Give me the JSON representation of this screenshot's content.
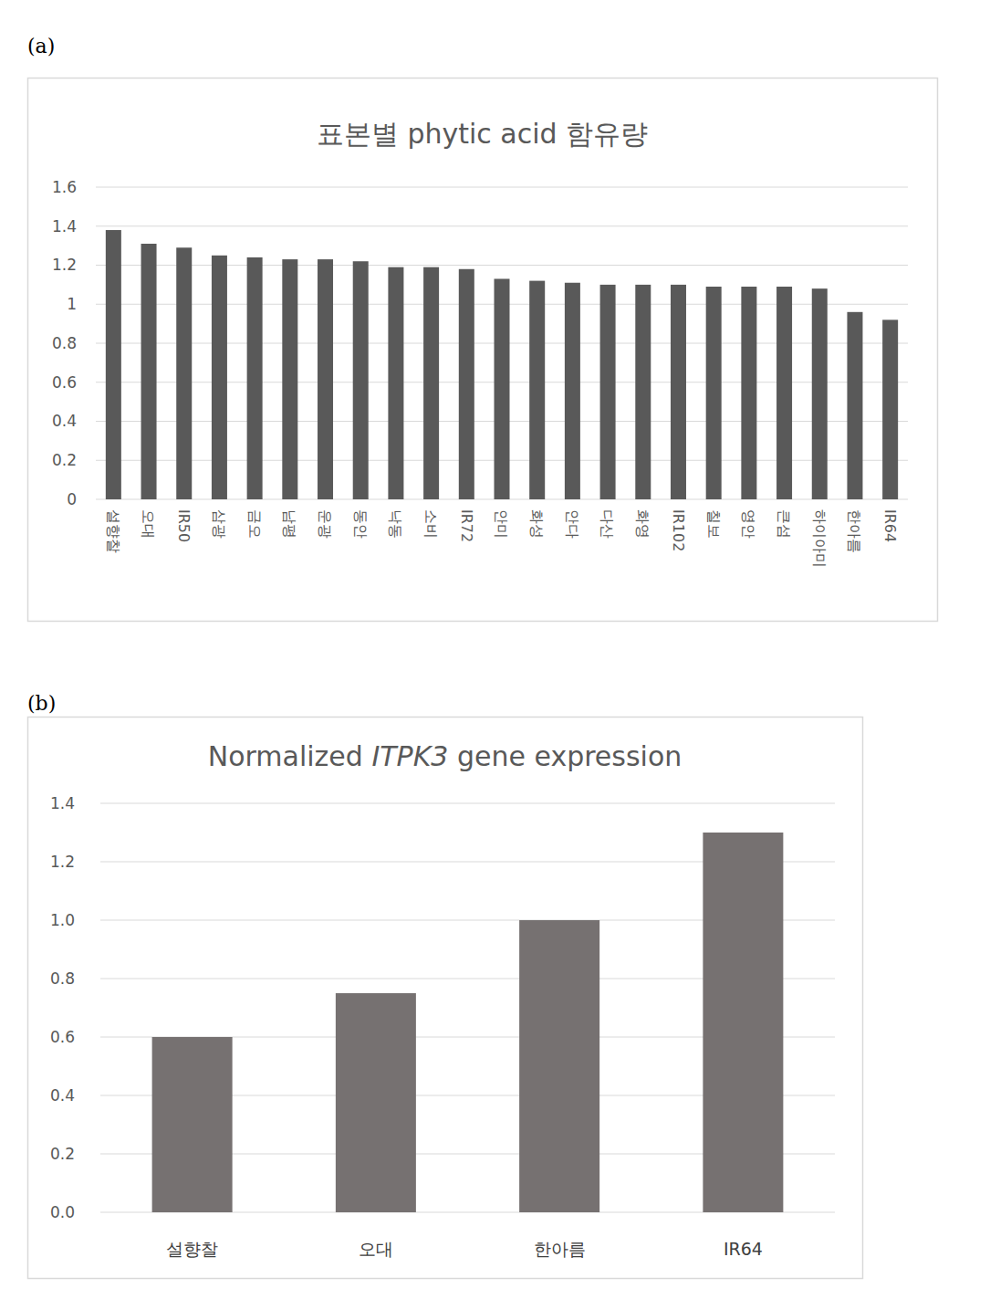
{
  "chart_data": [
    {
      "type": "bar",
      "annotations": [
        "(a)"
      ],
      "title": "표본별 phytic acid 함유량",
      "categories": [
        "설향찰",
        "오대",
        "IR50",
        "삼광",
        "금오",
        "남평",
        "운광",
        "동안",
        "낙동",
        "소비",
        "IR72",
        "안미",
        "화성",
        "안다",
        "다산",
        "화영",
        "IR102",
        "칠보",
        "영안",
        "큰섬",
        "하이아미",
        "한아름",
        "IR64"
      ],
      "values": [
        1.38,
        1.31,
        1.29,
        1.25,
        1.24,
        1.23,
        1.23,
        1.22,
        1.19,
        1.19,
        1.18,
        1.13,
        1.12,
        1.11,
        1.1,
        1.1,
        1.1,
        1.09,
        1.09,
        1.09,
        1.08,
        0.96,
        0.92
      ],
      "color": "#595959",
      "ylim": [
        0,
        1.6
      ],
      "yticks": [
        0,
        0.2,
        0.4,
        0.6,
        0.8,
        1,
        1.2,
        1.4,
        1.6
      ],
      "grid": true
    },
    {
      "type": "bar",
      "annotations": [
        "(b)"
      ],
      "title": "Normalized ITPK3 gene expression",
      "categories": [
        "설향찰",
        "오대",
        "한아름",
        "IR64"
      ],
      "values": [
        0.6,
        0.75,
        1.0,
        1.3
      ],
      "color": "#767171",
      "ylim": [
        0,
        1.4
      ],
      "yticks": [
        {
          "value": 0,
          "label": "0.0"
        },
        0.2,
        0.4,
        0.6,
        0.8,
        {
          "value": 1,
          "label": "1.0"
        },
        1.2,
        1.4
      ],
      "grid": true
    }
  ]
}
